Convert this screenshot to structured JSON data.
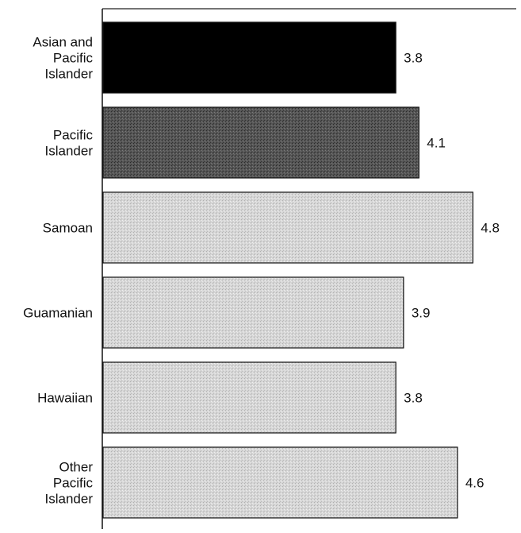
{
  "chart_data": {
    "type": "bar",
    "orientation": "horizontal",
    "categories": [
      "Asian and Pacific Islander",
      "Pacific Islander",
      "Samoan",
      "Guamanian",
      "Hawaiian",
      "Other Pacific Islander"
    ],
    "category_label_lines": [
      [
        "Asian and",
        "Pacific",
        "Islander"
      ],
      [
        "Pacific",
        "Islander"
      ],
      [
        "Samoan"
      ],
      [
        "Guamanian"
      ],
      [
        "Hawaiian"
      ],
      [
        "Other",
        "Pacific",
        "Islander"
      ]
    ],
    "values": [
      3.8,
      4.1,
      4.8,
      3.9,
      3.8,
      4.6
    ],
    "data_labels": [
      "3.8",
      "4.1",
      "4.8",
      "3.9",
      "3.8",
      "4.6"
    ],
    "bar_fills": [
      "#000000",
      "#4a4a4a",
      "#cccccc",
      "#cccccc",
      "#cccccc",
      "#cccccc"
    ],
    "xlim": [
      0,
      5.25
    ],
    "title": "",
    "xlabel": "",
    "ylabel": "",
    "grid": false,
    "legend": "none"
  }
}
